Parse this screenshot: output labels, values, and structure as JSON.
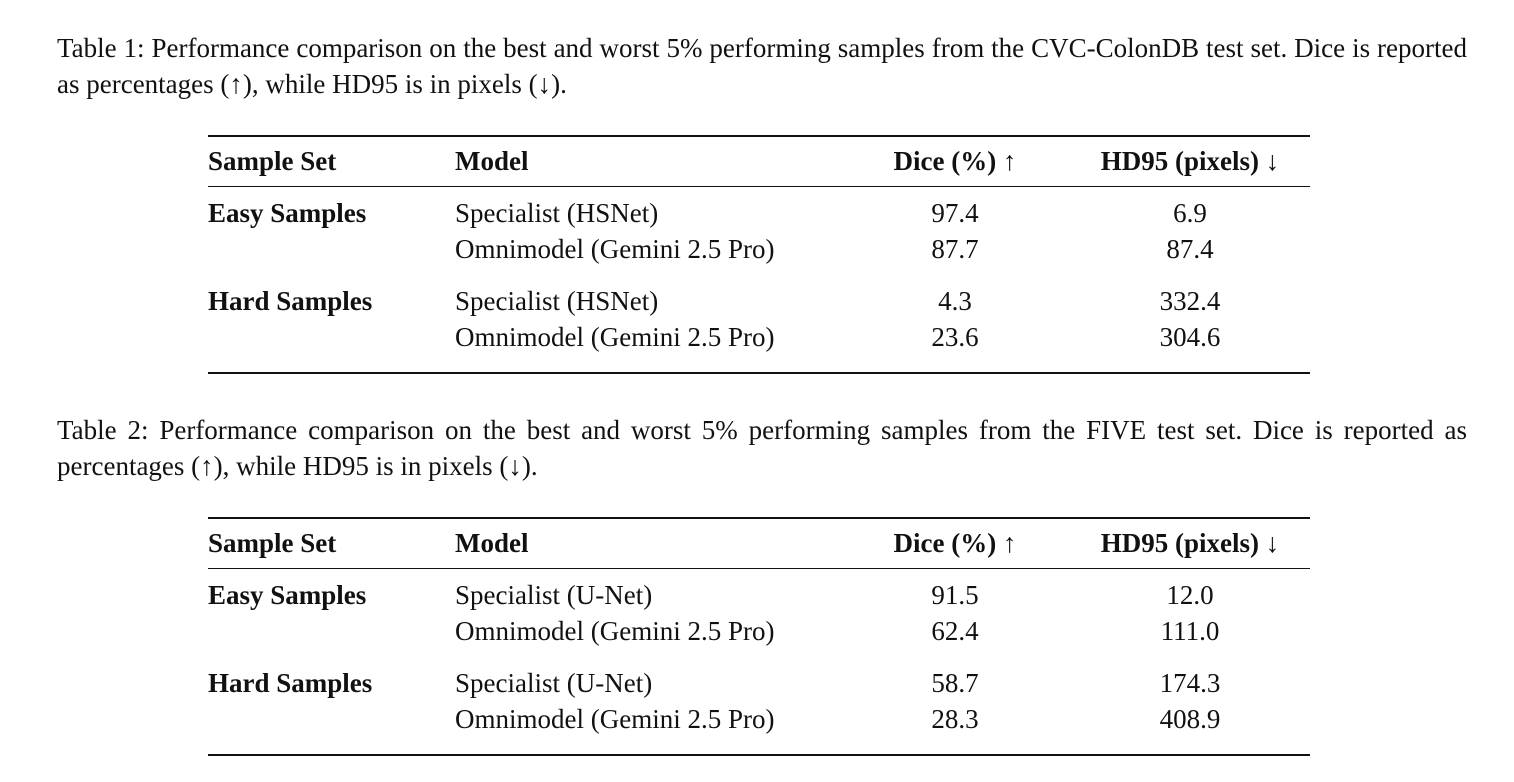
{
  "tables": [
    {
      "caption": "Table 1: Performance comparison on the best and worst 5% performing samples from the CVC-ColonDB test set. Dice is reported as percentages (↑), while HD95 is in pixels (↓).",
      "header": [
        "Sample Set",
        "Model",
        "Dice (%) ↑",
        "HD95 (pixels) ↓"
      ],
      "groups": [
        {
          "label": "Easy Samples",
          "rows": [
            [
              "Specialist (HSNet)",
              "97.4",
              "6.9"
            ],
            [
              "Omnimodel (Gemini 2.5 Pro)",
              "87.7",
              "87.4"
            ]
          ]
        },
        {
          "label": "Hard Samples",
          "rows": [
            [
              "Specialist (HSNet)",
              "4.3",
              "332.4"
            ],
            [
              "Omnimodel (Gemini 2.5 Pro)",
              "23.6",
              "304.6"
            ]
          ]
        }
      ]
    },
    {
      "caption": "Table 2: Performance comparison on the best and worst 5% performing samples from the FIVE test set. Dice is reported as percentages (↑), while HD95 is in pixels (↓).",
      "header": [
        "Sample Set",
        "Model",
        "Dice (%) ↑",
        "HD95 (pixels) ↓"
      ],
      "groups": [
        {
          "label": "Easy Samples",
          "rows": [
            [
              "Specialist (U-Net)",
              "91.5",
              "12.0"
            ],
            [
              "Omnimodel (Gemini 2.5 Pro)",
              "62.4",
              "111.0"
            ]
          ]
        },
        {
          "label": "Hard Samples",
          "rows": [
            [
              "Specialist (U-Net)",
              "58.7",
              "174.3"
            ],
            [
              "Omnimodel (Gemini 2.5 Pro)",
              "28.3",
              "408.9"
            ]
          ]
        }
      ]
    }
  ]
}
